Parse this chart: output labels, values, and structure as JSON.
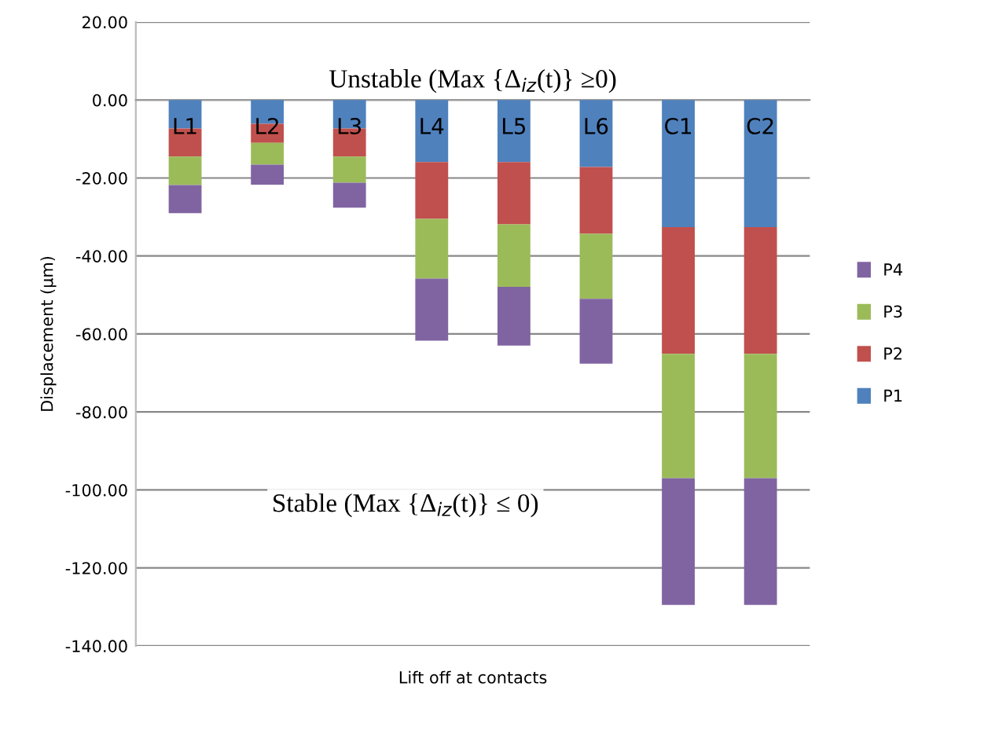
{
  "chart_data": {
    "type": "bar",
    "stacked": true,
    "xlabel": "Lift off at contacts",
    "ylabel": "Displacement (µm)",
    "categories": [
      "L1",
      "L2",
      "L3",
      "L4",
      "L5",
      "L6",
      "C1",
      "C2"
    ],
    "series": [
      {
        "name": "P1",
        "color": "#4f81bd",
        "values": [
          -7.3,
          -6.1,
          -7.3,
          -15.9,
          -15.9,
          -17.2,
          -32.6,
          -32.6
        ]
      },
      {
        "name": "P2",
        "color": "#c0504d",
        "values": [
          -7.2,
          -4.9,
          -7.2,
          -14.6,
          -16.0,
          -17.1,
          -32.5,
          -32.5
        ]
      },
      {
        "name": "P3",
        "color": "#9bbb59",
        "values": [
          -7.3,
          -5.6,
          -6.7,
          -15.3,
          -16.0,
          -16.7,
          -31.9,
          -31.9
        ]
      },
      {
        "name": "P4",
        "color": "#8064a2",
        "values": [
          -7.2,
          -5.1,
          -6.4,
          -15.9,
          -15.1,
          -16.6,
          -32.5,
          -32.5
        ]
      }
    ],
    "ylim": [
      -140,
      20
    ],
    "yticks": [
      {
        "value": -140,
        "label": "-140.00"
      },
      {
        "value": -120,
        "label": "-120.00"
      },
      {
        "value": -100,
        "label": "-100.00"
      },
      {
        "value": -80,
        "label": "-80.00"
      },
      {
        "value": -60,
        "label": "-60.00"
      },
      {
        "value": -40,
        "label": "-40.00"
      },
      {
        "value": -20,
        "label": "-20.00"
      },
      {
        "value": 0,
        "label": "0.00"
      },
      {
        "value": 20,
        "label": "20.00"
      }
    ],
    "grid": "y",
    "legend": "right",
    "annotations": [
      "Unstable (Max {Δ$_{iz}$(t)} ≥0)",
      "Stable (Max {Δ$_{iz}$(t)} ≤ 0)"
    ]
  }
}
